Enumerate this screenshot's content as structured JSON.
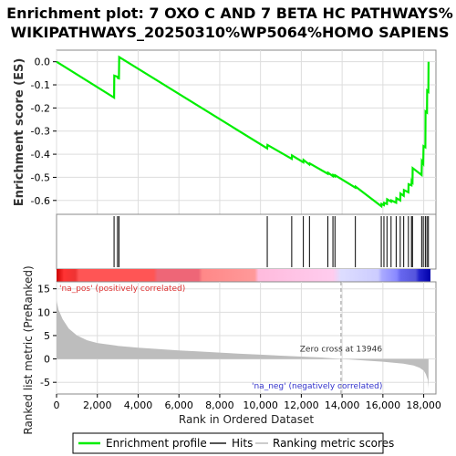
{
  "title_line1": "Enrichment plot: 7 OXO C AND 7 BETA HC PATHWAYS%",
  "title_line2": "WIKIPATHWAYS_20250310%WP5064%HOMO SAPIENS",
  "colors": {
    "es_line": "#00ee00",
    "hit_line": "#000000",
    "metric_fill": "#bdbdbd",
    "pos_label": "#dd3333",
    "neg_label": "#3333cc",
    "zero_cross_line": "#999999",
    "grid": "#dddddd"
  },
  "legend": {
    "items": [
      {
        "label": "Enrichment profile",
        "color": "#00ee00"
      },
      {
        "label": "Hits",
        "color": "#555555"
      },
      {
        "label": "Ranking metric scores",
        "color": "#cccccc"
      }
    ]
  },
  "chart_data": [
    {
      "type": "line",
      "name": "enrichment-profile",
      "ylabel": "Enrichment score (ES)",
      "xlim": [
        0,
        18600
      ],
      "ylim": [
        -0.66,
        0.05
      ],
      "yticks": [
        0.0,
        -0.1,
        -0.2,
        -0.3,
        -0.4,
        -0.5,
        -0.6
      ],
      "ytick_labels": [
        "0.0",
        "-0.1",
        "-0.2",
        "-0.3",
        "-0.4",
        "-0.5",
        "-0.6"
      ],
      "grid": true,
      "x": [
        0,
        2820,
        2830,
        2990,
        3000,
        3060,
        3070,
        10330,
        10340,
        11530,
        11540,
        12100,
        12110,
        12400,
        12410,
        13300,
        13310,
        13550,
        13560,
        13650,
        13660,
        14650,
        14660,
        15920,
        15930,
        16050,
        16060,
        16200,
        16210,
        16400,
        16410,
        16650,
        16660,
        16850,
        16860,
        17020,
        17030,
        17250,
        17260,
        17400,
        17410,
        17450,
        17460,
        17900,
        17910,
        17980,
        17990,
        18080,
        18090,
        18160,
        18170,
        18230,
        18240
      ],
      "y": [
        0.0,
        -0.155,
        -0.06,
        -0.065,
        -0.07,
        -0.072,
        0.02,
        -0.375,
        -0.36,
        -0.42,
        -0.405,
        -0.435,
        -0.425,
        -0.445,
        -0.44,
        -0.485,
        -0.48,
        -0.495,
        -0.49,
        -0.496,
        -0.491,
        -0.545,
        -0.54,
        -0.625,
        -0.615,
        -0.62,
        -0.61,
        -0.615,
        -0.595,
        -0.605,
        -0.6,
        -0.61,
        -0.59,
        -0.6,
        -0.57,
        -0.58,
        -0.555,
        -0.565,
        -0.53,
        -0.535,
        -0.515,
        -0.52,
        -0.46,
        -0.49,
        -0.43,
        -0.44,
        -0.365,
        -0.37,
        -0.215,
        -0.22,
        -0.125,
        -0.13,
        0.0
      ]
    },
    {
      "type": "hits",
      "name": "hits",
      "x": [
        2820,
        2990,
        3060,
        10330,
        11530,
        12100,
        12400,
        13300,
        13550,
        13650,
        14650,
        15920,
        16050,
        16200,
        16400,
        16650,
        16850,
        17020,
        17250,
        17400,
        17450,
        17900,
        17980,
        18080,
        18160,
        18230
      ]
    },
    {
      "type": "area",
      "name": "ranking-metric",
      "ylabel": "Ranked list metric (PreRanked)",
      "xlabel": "Rank in Ordered Dataset",
      "xlim": [
        0,
        18600
      ],
      "ylim": [
        -7.5,
        16.5
      ],
      "xticks": [
        0,
        2000,
        4000,
        6000,
        8000,
        10000,
        12000,
        14000,
        16000,
        18000
      ],
      "xtick_labels": [
        "0",
        "2,000",
        "4,000",
        "6,000",
        "8,000",
        "10,000",
        "12,000",
        "14,000",
        "16,000",
        "18,000"
      ],
      "yticks": [
        -5,
        0,
        5,
        10,
        15
      ],
      "ytick_labels": [
        "-5",
        "0",
        "5",
        "10",
        "15"
      ],
      "x": [
        0,
        100,
        300,
        600,
        1000,
        1500,
        2000,
        3000,
        4000,
        5000,
        6000,
        7000,
        8000,
        9000,
        10000,
        11000,
        12000,
        13000,
        13946,
        15000,
        16000,
        17000,
        17500,
        17800,
        18000,
        18100,
        18200,
        18240
      ],
      "y": [
        12.5,
        10.5,
        8.5,
        6.5,
        5.0,
        4.0,
        3.4,
        2.8,
        2.4,
        2.1,
        1.8,
        1.6,
        1.35,
        1.1,
        0.9,
        0.7,
        0.5,
        0.3,
        0.0,
        -0.3,
        -0.6,
        -1.0,
        -1.4,
        -1.9,
        -2.5,
        -3.2,
        -4.5,
        -6.3
      ],
      "zero_cross_rank": 13946,
      "zero_cross_label": "Zero cross at 13946",
      "pos_label": "'na_pos' (positively correlated)",
      "neg_label": "'na_neg' (negatively correlated)"
    }
  ]
}
